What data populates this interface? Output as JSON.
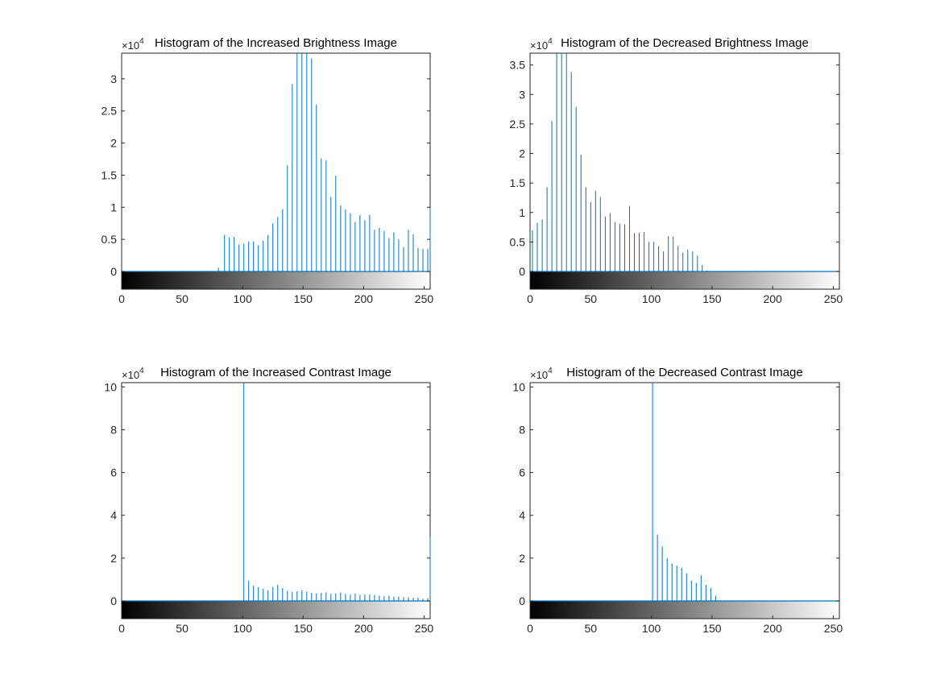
{
  "figure": {
    "background": "#ffffff",
    "stem_color": "#0072BD",
    "axis_color": "#262626"
  },
  "chart_data": [
    {
      "type": "bar",
      "title": "Histogram of the Increased Brightness Image",
      "exponent_label": "×10",
      "exponent_power": "4",
      "xlim": [
        0,
        255
      ],
      "ylim": [
        0,
        3.4
      ],
      "yticks": [
        0,
        0.5,
        1,
        1.5,
        2,
        2.5,
        3
      ],
      "ytick_labels": [
        "0",
        "0.5",
        "1",
        "1.5",
        "2",
        "2.5",
        "3"
      ],
      "xticks": [
        0,
        50,
        100,
        150,
        200,
        250
      ],
      "xtick_labels": [
        "0",
        "50",
        "100",
        "150",
        "200",
        "250"
      ],
      "colorbar": "gray",
      "grid": false,
      "x": [
        80,
        85,
        89,
        93,
        97,
        101,
        105,
        109,
        113,
        117,
        121,
        125,
        129,
        133,
        137,
        141,
        145,
        149,
        153,
        157,
        161,
        165,
        169,
        173,
        177,
        181,
        185,
        189,
        193,
        197,
        201,
        205,
        209,
        213,
        217,
        221,
        225,
        229,
        233,
        237,
        241,
        245,
        249,
        253,
        255
      ],
      "values": [
        0.06,
        0.57,
        0.53,
        0.54,
        0.42,
        0.43,
        0.47,
        0.47,
        0.41,
        0.48,
        0.57,
        0.75,
        0.85,
        0.97,
        1.65,
        2.92,
        3.4,
        3.4,
        3.4,
        3.32,
        2.6,
        1.76,
        1.73,
        1.16,
        1.49,
        1.03,
        0.97,
        0.91,
        0.77,
        0.88,
        0.8,
        0.88,
        0.65,
        0.68,
        0.63,
        0.52,
        0.61,
        0.5,
        0.38,
        0.65,
        0.58,
        0.37,
        0.35,
        0.35,
        1.0
      ]
    },
    {
      "type": "bar",
      "title": "Histogram of the Decreased Brightness Image",
      "exponent_label": "×10",
      "exponent_power": "4",
      "xlim": [
        0,
        255
      ],
      "ylim": [
        0,
        3.7
      ],
      "yticks": [
        0,
        0.5,
        1,
        1.5,
        2,
        2.5,
        3,
        3.5
      ],
      "ytick_labels": [
        "0",
        "0.5",
        "1",
        "1.5",
        "2",
        "2.5",
        "3",
        "3.5"
      ],
      "xticks": [
        0,
        50,
        100,
        150,
        200,
        250
      ],
      "xtick_labels": [
        "0",
        "50",
        "100",
        "150",
        "200",
        "250"
      ],
      "colorbar": "gray",
      "grid": false,
      "x": [
        2,
        6,
        10,
        14,
        18,
        22,
        26,
        30,
        34,
        38,
        42,
        46,
        50,
        54,
        58,
        62,
        66,
        70,
        74,
        78,
        82,
        86,
        90,
        94,
        98,
        102,
        106,
        110,
        114,
        118,
        122,
        126,
        130,
        134,
        138,
        142,
        146
      ],
      "values": [
        0.7,
        0.82,
        0.88,
        1.43,
        2.55,
        3.7,
        3.7,
        3.7,
        3.38,
        2.79,
        1.98,
        1.43,
        1.18,
        1.37,
        1.26,
        0.93,
        0.99,
        0.84,
        0.81,
        0.8,
        1.11,
        0.65,
        0.66,
        0.67,
        0.5,
        0.5,
        0.43,
        0.34,
        0.6,
        0.59,
        0.44,
        0.32,
        0.37,
        0.34,
        0.27,
        0.11,
        0.02
      ]
    },
    {
      "type": "bar",
      "title": "Histogram of the Increased Contrast Image",
      "exponent_label": "×10",
      "exponent_power": "4",
      "xlim": [
        0,
        255
      ],
      "ylim": [
        0,
        10.2
      ],
      "yticks": [
        0,
        2,
        4,
        6,
        8,
        10
      ],
      "ytick_labels": [
        "0",
        "2",
        "4",
        "6",
        "8",
        "10"
      ],
      "xticks": [
        0,
        50,
        100,
        150,
        200,
        250
      ],
      "xtick_labels": [
        "0",
        "50",
        "100",
        "150",
        "200",
        "250"
      ],
      "colorbar": "gray",
      "grid": false,
      "x": [
        101,
        105,
        109,
        113,
        117,
        121,
        125,
        129,
        133,
        137,
        141,
        145,
        149,
        153,
        157,
        161,
        165,
        169,
        173,
        177,
        181,
        185,
        189,
        193,
        197,
        201,
        205,
        209,
        213,
        217,
        221,
        225,
        229,
        233,
        237,
        241,
        245,
        249,
        253,
        255
      ],
      "values": [
        10.2,
        0.95,
        0.72,
        0.65,
        0.57,
        0.5,
        0.65,
        0.75,
        0.6,
        0.48,
        0.42,
        0.45,
        0.5,
        0.43,
        0.38,
        0.35,
        0.38,
        0.4,
        0.33,
        0.35,
        0.4,
        0.33,
        0.3,
        0.35,
        0.28,
        0.3,
        0.3,
        0.28,
        0.25,
        0.22,
        0.25,
        0.2,
        0.2,
        0.18,
        0.18,
        0.15,
        0.15,
        0.1,
        0.12,
        3.0
      ]
    },
    {
      "type": "bar",
      "title": "Histogram of the Decreased Contrast Image",
      "exponent_label": "×10",
      "exponent_power": "4",
      "xlim": [
        0,
        255
      ],
      "ylim": [
        0,
        10.2
      ],
      "yticks": [
        0,
        2,
        4,
        6,
        8,
        10
      ],
      "ytick_labels": [
        "0",
        "2",
        "4",
        "6",
        "8",
        "10"
      ],
      "xticks": [
        0,
        50,
        100,
        150,
        200,
        250
      ],
      "xtick_labels": [
        "0",
        "50",
        "100",
        "150",
        "200",
        "250"
      ],
      "colorbar": "gray",
      "grid": false,
      "x": [
        101,
        105,
        109,
        113,
        117,
        121,
        125,
        129,
        133,
        137,
        141,
        145,
        149,
        153
      ],
      "values": [
        10.2,
        3.1,
        2.55,
        2.0,
        1.75,
        1.65,
        1.55,
        1.3,
        0.95,
        0.85,
        1.2,
        0.75,
        0.6,
        0.25
      ]
    }
  ]
}
